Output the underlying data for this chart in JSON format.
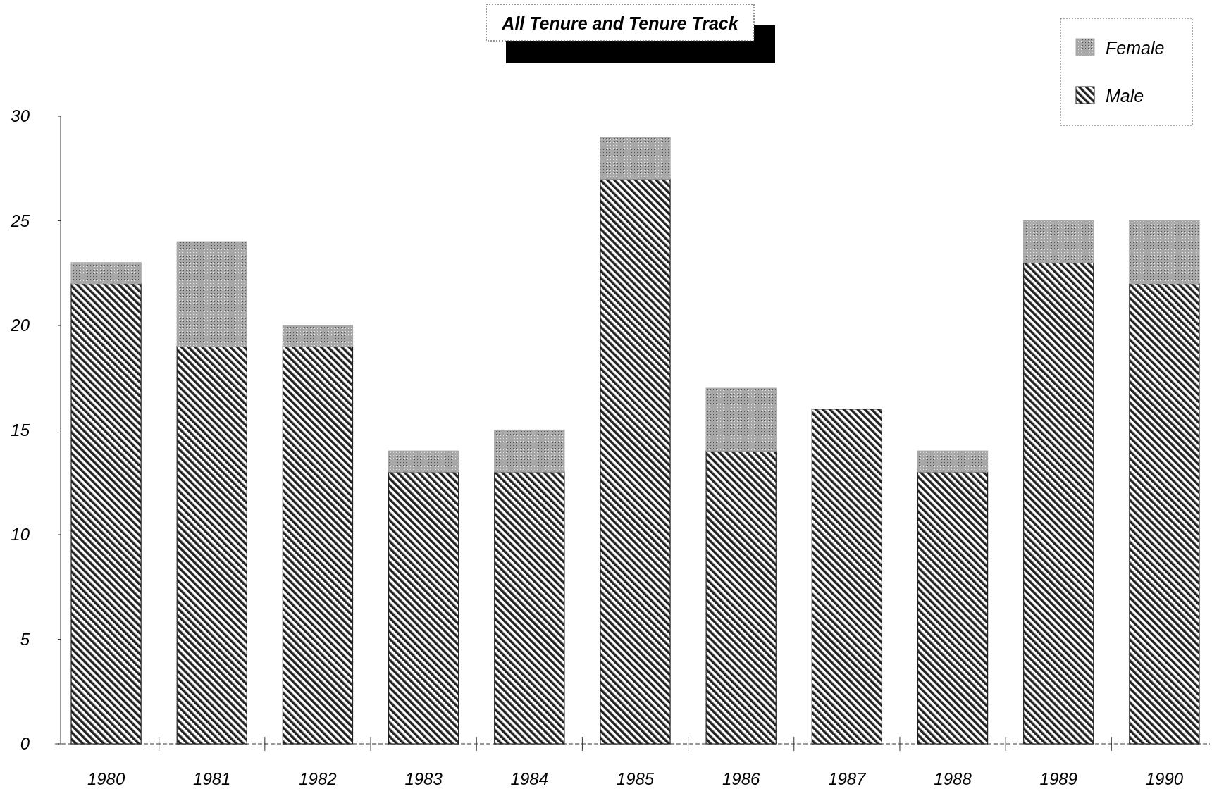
{
  "chart_data": {
    "type": "bar",
    "title": "All Tenure and Tenure Track",
    "categories": [
      "1980",
      "1981",
      "1982",
      "1983",
      "1984",
      "1985",
      "1986",
      "1987",
      "1988",
      "1989",
      "1990"
    ],
    "stacked": true,
    "series": [
      {
        "name": "Male",
        "color": "#222222",
        "values": [
          22,
          19,
          19,
          13,
          13,
          27,
          14,
          16,
          13,
          23,
          22
        ]
      },
      {
        "name": "Female",
        "color": "#a8a8a8",
        "values": [
          1,
          5,
          1,
          1,
          2,
          2,
          3,
          0,
          1,
          2,
          3
        ]
      }
    ],
    "ylim": [
      0,
      30
    ],
    "yticks": [
      0,
      5,
      10,
      15,
      20,
      25,
      30
    ],
    "legend": "top right"
  }
}
